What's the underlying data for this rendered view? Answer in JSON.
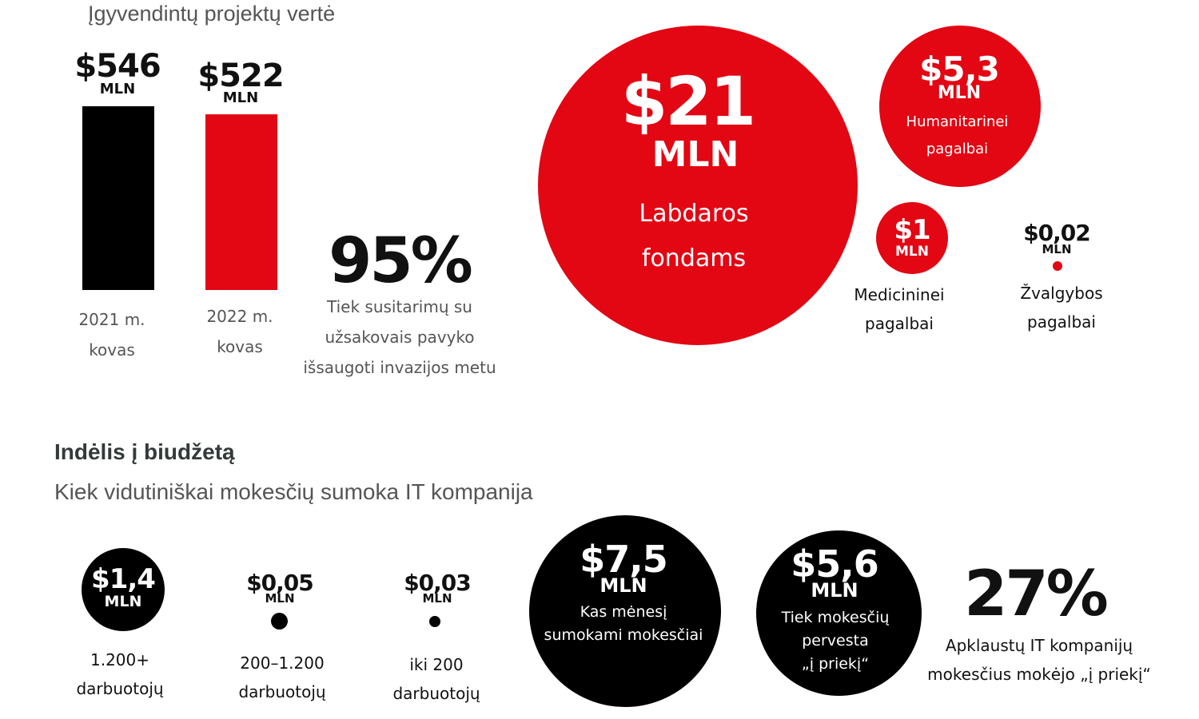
{
  "section1": {
    "title": "Įgyvendintų projektų vertė",
    "bars": [
      {
        "value_label": "$546",
        "unit": "MLN",
        "caption": "2021 m.\nkovas",
        "value": 546,
        "color": "#000000"
      },
      {
        "value_label": "$522",
        "unit": "MLN",
        "caption": "2022 m.\nkovas",
        "value": 522,
        "color": "#e30613"
      }
    ],
    "percent": {
      "value": "95%",
      "caption": "Tiek susitarimų su\nužsakovais pavyko\nišsaugoti invazijos metu"
    }
  },
  "chart_data": [
    {
      "type": "bar",
      "title": "Įgyvendintų projektų vertė",
      "categories": [
        "2021 m. kovas",
        "2022 m. kovas"
      ],
      "values": [
        546,
        522
      ],
      "colors": [
        "#000000",
        "#e30613"
      ]
    },
    {
      "type": "bubble",
      "categories": [
        "Labdaros fondams",
        "Humanitarinei pagalbai",
        "Medicininei pagalbai",
        "Žvalgybos pagalbai"
      ],
      "values": [
        21,
        5.3,
        1,
        0.02
      ],
      "color": "#e30613"
    },
    {
      "type": "bubble",
      "title": "Kiek vidutiniškai mokesčių sumoka IT kompanija",
      "categories": [
        "1.200+ darbuotojų",
        "200–1.200 darbuotojų",
        "iki 200 darbuotojų"
      ],
      "values": [
        1.4,
        0.05,
        0.03
      ],
      "color": "#000000"
    }
  ],
  "donations": [
    {
      "value_label": "$21",
      "unit": "MLN",
      "caption": "Labdaros\nfondams"
    },
    {
      "value_label": "$5,3",
      "unit": "MLN",
      "caption": "Humanitarinei\npagalbai"
    },
    {
      "value_label": "$1",
      "unit": "MLN",
      "caption": "Medicininei\npagalbai"
    },
    {
      "value_label": "$0,02",
      "unit": "MLN",
      "caption": "Žvalgybos\npagalbai"
    }
  ],
  "section2": {
    "title": "Indėlis į biudžetą",
    "subtitle": "Kiek vidutiniškai mokesčių sumoka IT kompanija",
    "companies": [
      {
        "value_label": "$1,4",
        "unit": "MLN",
        "caption": "1.200+\ndarbuotojų"
      },
      {
        "value_label": "$0,05",
        "unit": "MLN",
        "caption": "200–1.200\ndarbuotojų"
      },
      {
        "value_label": "$0,03",
        "unit": "MLN",
        "caption": "iki 200\ndarbuotojų"
      }
    ],
    "monthly": {
      "value_label": "$7,5",
      "unit": "MLN",
      "caption": "Kas mėnesį\nsumokami mokesčiai"
    },
    "advance": {
      "value_label": "$5,6",
      "unit": "MLN",
      "caption": "Tiek mokesčių\npervesta\n„į priekį“"
    },
    "percent": {
      "value": "27%",
      "caption": "Apklaustų IT kompanijų\nmokesčius mokėjo „į priekį“"
    }
  },
  "colors": {
    "red": "#e30613",
    "black": "#000000",
    "text": "#555555"
  }
}
